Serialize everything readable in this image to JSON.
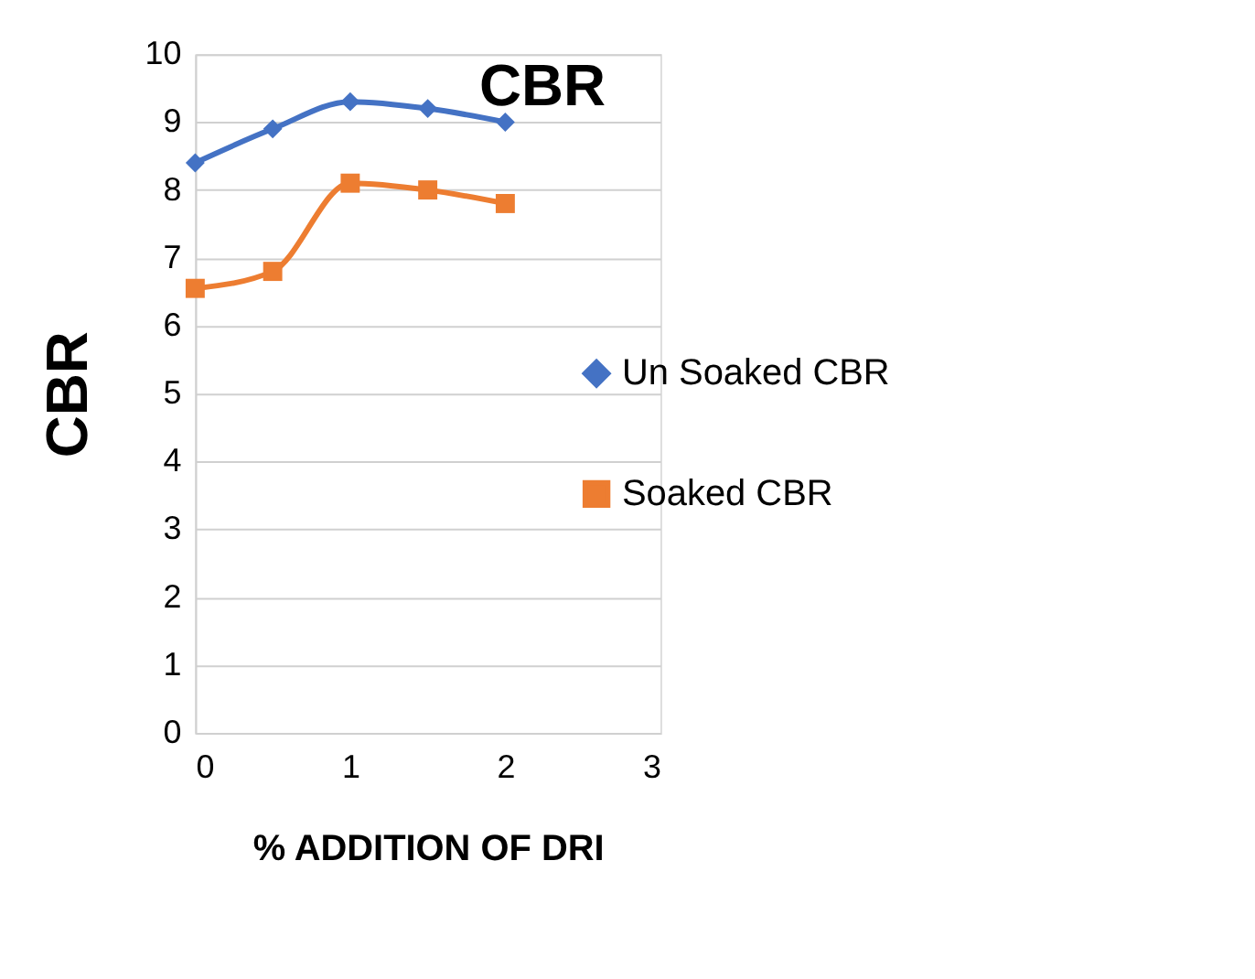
{
  "chart_data": {
    "type": "line",
    "title": "CBR",
    "xlabel": "%  ADDITION OF DRI",
    "ylabel": "CBR",
    "x": [
      0,
      0.5,
      1,
      1.5,
      2
    ],
    "series": [
      {
        "name": "Un Soaked CBR",
        "color": "#4472c4",
        "marker": "diamond",
        "values": [
          8.4,
          8.9,
          9.3,
          9.2,
          9.0
        ]
      },
      {
        "name": "Soaked CBR",
        "color": "#ed7d31",
        "marker": "square",
        "values": [
          6.55,
          6.8,
          8.1,
          8.0,
          7.8
        ]
      }
    ],
    "xlim": [
      0,
      3
    ],
    "xticks": [
      0,
      1,
      2,
      3
    ],
    "ylim": [
      0,
      10
    ],
    "yticks": [
      0,
      1,
      2,
      3,
      4,
      5,
      6,
      7,
      8,
      9,
      10
    ],
    "grid": "y",
    "legend": "right"
  }
}
